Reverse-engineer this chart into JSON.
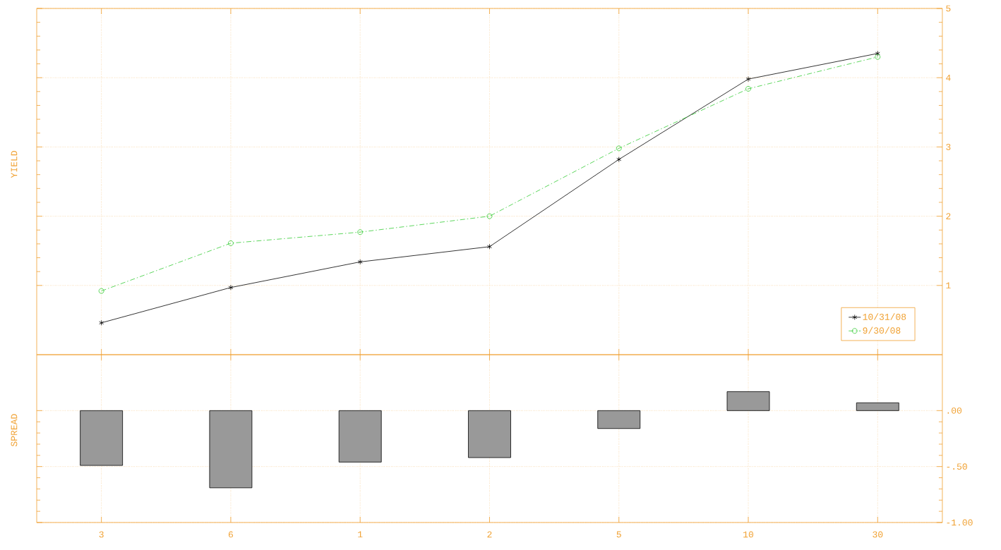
{
  "chart_data": [
    {
      "type": "line",
      "ylabel": "YIELD",
      "categories": [
        "3",
        "6",
        "1",
        "2",
        "5",
        "10",
        "30"
      ],
      "series": [
        {
          "name": "10/31/08",
          "color": "#000000",
          "marker": "cross",
          "line_style": "solid",
          "values": [
            0.46,
            0.97,
            1.34,
            1.56,
            2.82,
            3.98,
            4.35
          ]
        },
        {
          "name": "9/30/08",
          "color": "#33cc33",
          "marker": "circle",
          "line_style": "dashed",
          "values": [
            0.92,
            1.61,
            1.77,
            2.0,
            2.98,
            3.84,
            4.3
          ]
        }
      ],
      "ylim": [
        0,
        5
      ],
      "yticks": [
        1,
        2,
        3,
        4,
        5
      ],
      "grid": true,
      "legend": "bottom right",
      "tick_labels": "y"
    },
    {
      "type": "bar",
      "ylabel": "SPREAD",
      "categories": [
        "3",
        "6",
        "1",
        "2",
        "5",
        "10",
        "30"
      ],
      "values": [
        -0.49,
        -0.69,
        -0.46,
        -0.42,
        -0.16,
        0.17,
        0.07
      ],
      "color": "#999999",
      "ylim": [
        -1,
        0.5
      ],
      "yticks": [
        {
          "value": -1,
          "label": "-1.00"
        },
        {
          "value": -0.5,
          "label": "-.50"
        },
        {
          "value": 0,
          "label": ".00"
        }
      ],
      "grid": true
    }
  ]
}
